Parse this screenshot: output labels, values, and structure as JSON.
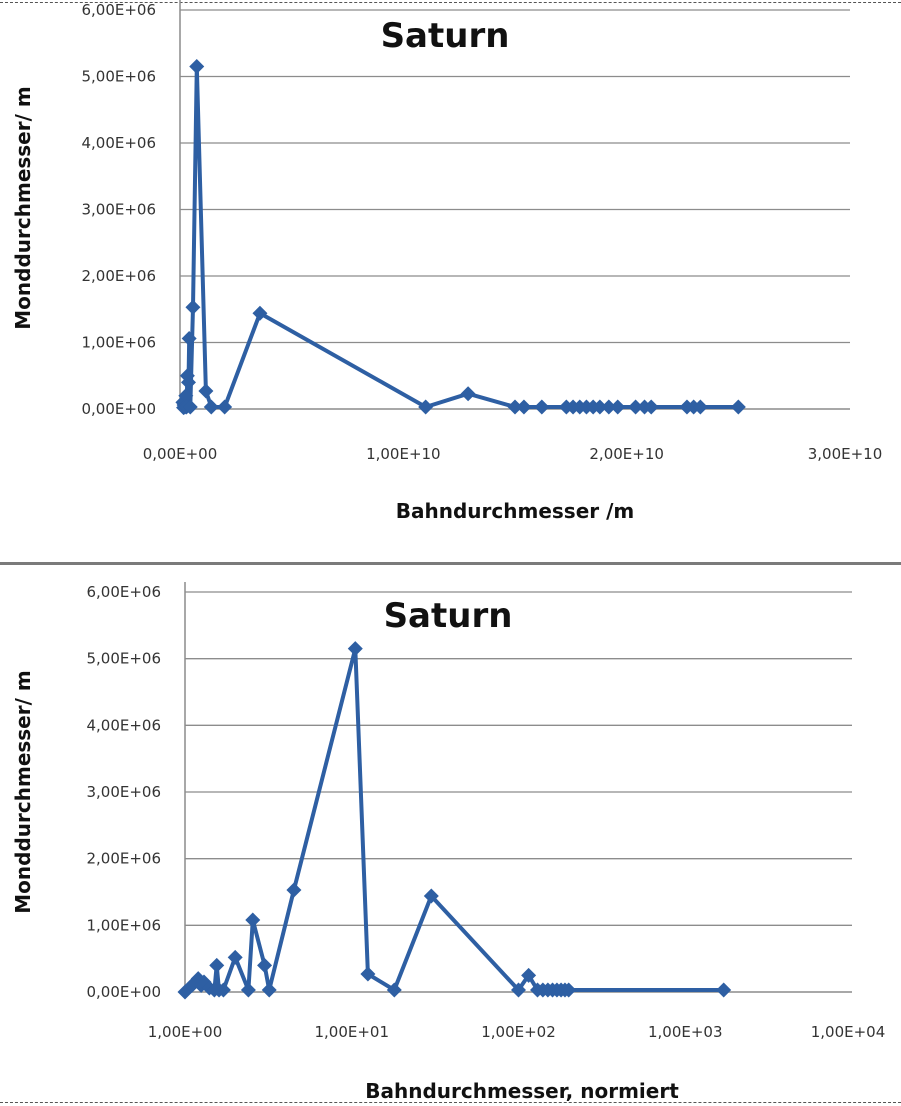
{
  "chart_data": [
    {
      "type": "line",
      "title": "Saturn",
      "xlabel": "Bahndurchmesser /m",
      "ylabel": "Monddurchmesser/ m",
      "xscale": "linear",
      "xlim": [
        0,
        30000000000
      ],
      "ylim": [
        0,
        6000000
      ],
      "xticks": [
        0,
        10000000000,
        20000000000,
        30000000000
      ],
      "xtick_labels": [
        "0,00E+00",
        "1,00E+10",
        "2,00E+10",
        "3,00E+10"
      ],
      "yticks": [
        0,
        1000000,
        2000000,
        3000000,
        4000000,
        5000000,
        6000000
      ],
      "ytick_labels": [
        "0,00E+00",
        "1,00E+06",
        "2,00E+06",
        "3,00E+06",
        "4,00E+06",
        "5,00E+06",
        "6,00E+06"
      ],
      "grid": "horizontal",
      "legend": "none",
      "series_color": "#2e5fa3",
      "series": [
        {
          "x": [
            130000000,
            160000000,
            180000000,
            220000000,
            260000000,
            290000000,
            330000000,
            380000000,
            410000000,
            460000000,
            580000000,
            750000000,
            1160000000,
            1400000000,
            2000000000,
            3580000000,
            11000000000,
            12900000000,
            15000000000,
            15400000000,
            16200000000,
            17300000000,
            17600000000,
            17900000000,
            18200000000,
            18500000000,
            18800000000,
            19200000000,
            19600000000,
            20400000000,
            20800000000,
            21100000000,
            22700000000,
            23000000000,
            23300000000,
            25000000000
          ],
          "y": [
            100000,
            20000,
            60000,
            30000,
            200000,
            30000,
            500000,
            400000,
            1060000,
            30000,
            1530000,
            5150000,
            270000,
            30000,
            30000,
            1440000,
            30000,
            230000,
            30000,
            30000,
            30000,
            30000,
            30000,
            30000,
            30000,
            30000,
            30000,
            30000,
            30000,
            30000,
            30000,
            30000,
            30000,
            30000,
            30000,
            30000
          ]
        }
      ]
    },
    {
      "type": "line",
      "title": "Saturn",
      "xlabel": "Bahndurchmesser, normiert",
      "ylabel": "Monddurchmesser/ m",
      "xscale": "log",
      "xlim": [
        1,
        10000
      ],
      "ylim": [
        0,
        6000000
      ],
      "xticks": [
        1,
        10,
        100,
        1000,
        10000
      ],
      "xtick_labels": [
        "1,00E+00",
        "1,00E+01",
        "1,00E+02",
        "1,00E+03",
        "1,00E+04"
      ],
      "yticks": [
        0,
        1000000,
        2000000,
        3000000,
        4000000,
        5000000,
        6000000
      ],
      "ytick_labels": [
        "0,00E+00",
        "1,00E+06",
        "2,00E+06",
        "3,00E+06",
        "4,00E+06",
        "5,00E+06",
        "6,00E+06"
      ],
      "grid": "horizontal",
      "legend": "none",
      "series_color": "#2e5fa3",
      "series": [
        {
          "x": [
            1.0,
            1.1,
            1.2,
            1.25,
            1.3,
            1.4,
            1.5,
            1.55,
            1.6,
            1.7,
            2.0,
            2.4,
            2.55,
            3.0,
            3.2,
            4.5,
            10.5,
            12.5,
            18,
            30,
            100,
            115,
            130,
            140,
            150,
            160,
            170,
            180,
            190,
            200,
            1700
          ],
          "y": [
            0,
            100000,
            200000,
            100000,
            150000,
            60000,
            30000,
            400000,
            30000,
            30000,
            520000,
            30000,
            1080000,
            400000,
            30000,
            1530000,
            5150000,
            270000,
            30000,
            1440000,
            30000,
            250000,
            30000,
            30000,
            30000,
            30000,
            30000,
            30000,
            30000,
            30000,
            30000
          ]
        }
      ]
    }
  ]
}
